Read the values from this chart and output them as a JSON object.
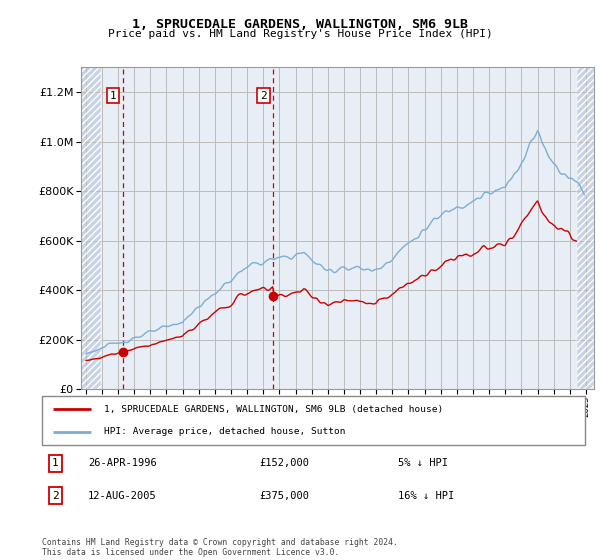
{
  "title1": "1, SPRUCEDALE GARDENS, WALLINGTON, SM6 9LB",
  "title2": "Price paid vs. HM Land Registry's House Price Index (HPI)",
  "legend_line1": "1, SPRUCEDALE GARDENS, WALLINGTON, SM6 9LB (detached house)",
  "legend_line2": "HPI: Average price, detached house, Sutton",
  "marker1_date": "26-APR-1996",
  "marker1_price": 152000,
  "marker1_note": "5% ↓ HPI",
  "marker2_date": "12-AUG-2005",
  "marker2_price": 375000,
  "marker2_note": "16% ↓ HPI",
  "footnote": "Contains HM Land Registry data © Crown copyright and database right 2024.\nThis data is licensed under the Open Government Licence v3.0.",
  "line_color_property": "#cc0000",
  "line_color_hpi": "#7aaed6",
  "bg_main": "#e8eef6",
  "bg_hatch": "#c8d4e4",
  "grid_color": "#bbbbbb",
  "ylim": [
    0,
    1300000
  ],
  "yticks": [
    0,
    200000,
    400000,
    600000,
    800000,
    1000000,
    1200000
  ],
  "xlim_start": 1993.7,
  "xlim_end": 2025.5,
  "hatch_left_end": 1994.92,
  "hatch_right_start": 2024.42,
  "sale1_year": 1996.29,
  "sale1_price": 152000,
  "sale2_year": 2005.62,
  "sale2_price": 375000
}
